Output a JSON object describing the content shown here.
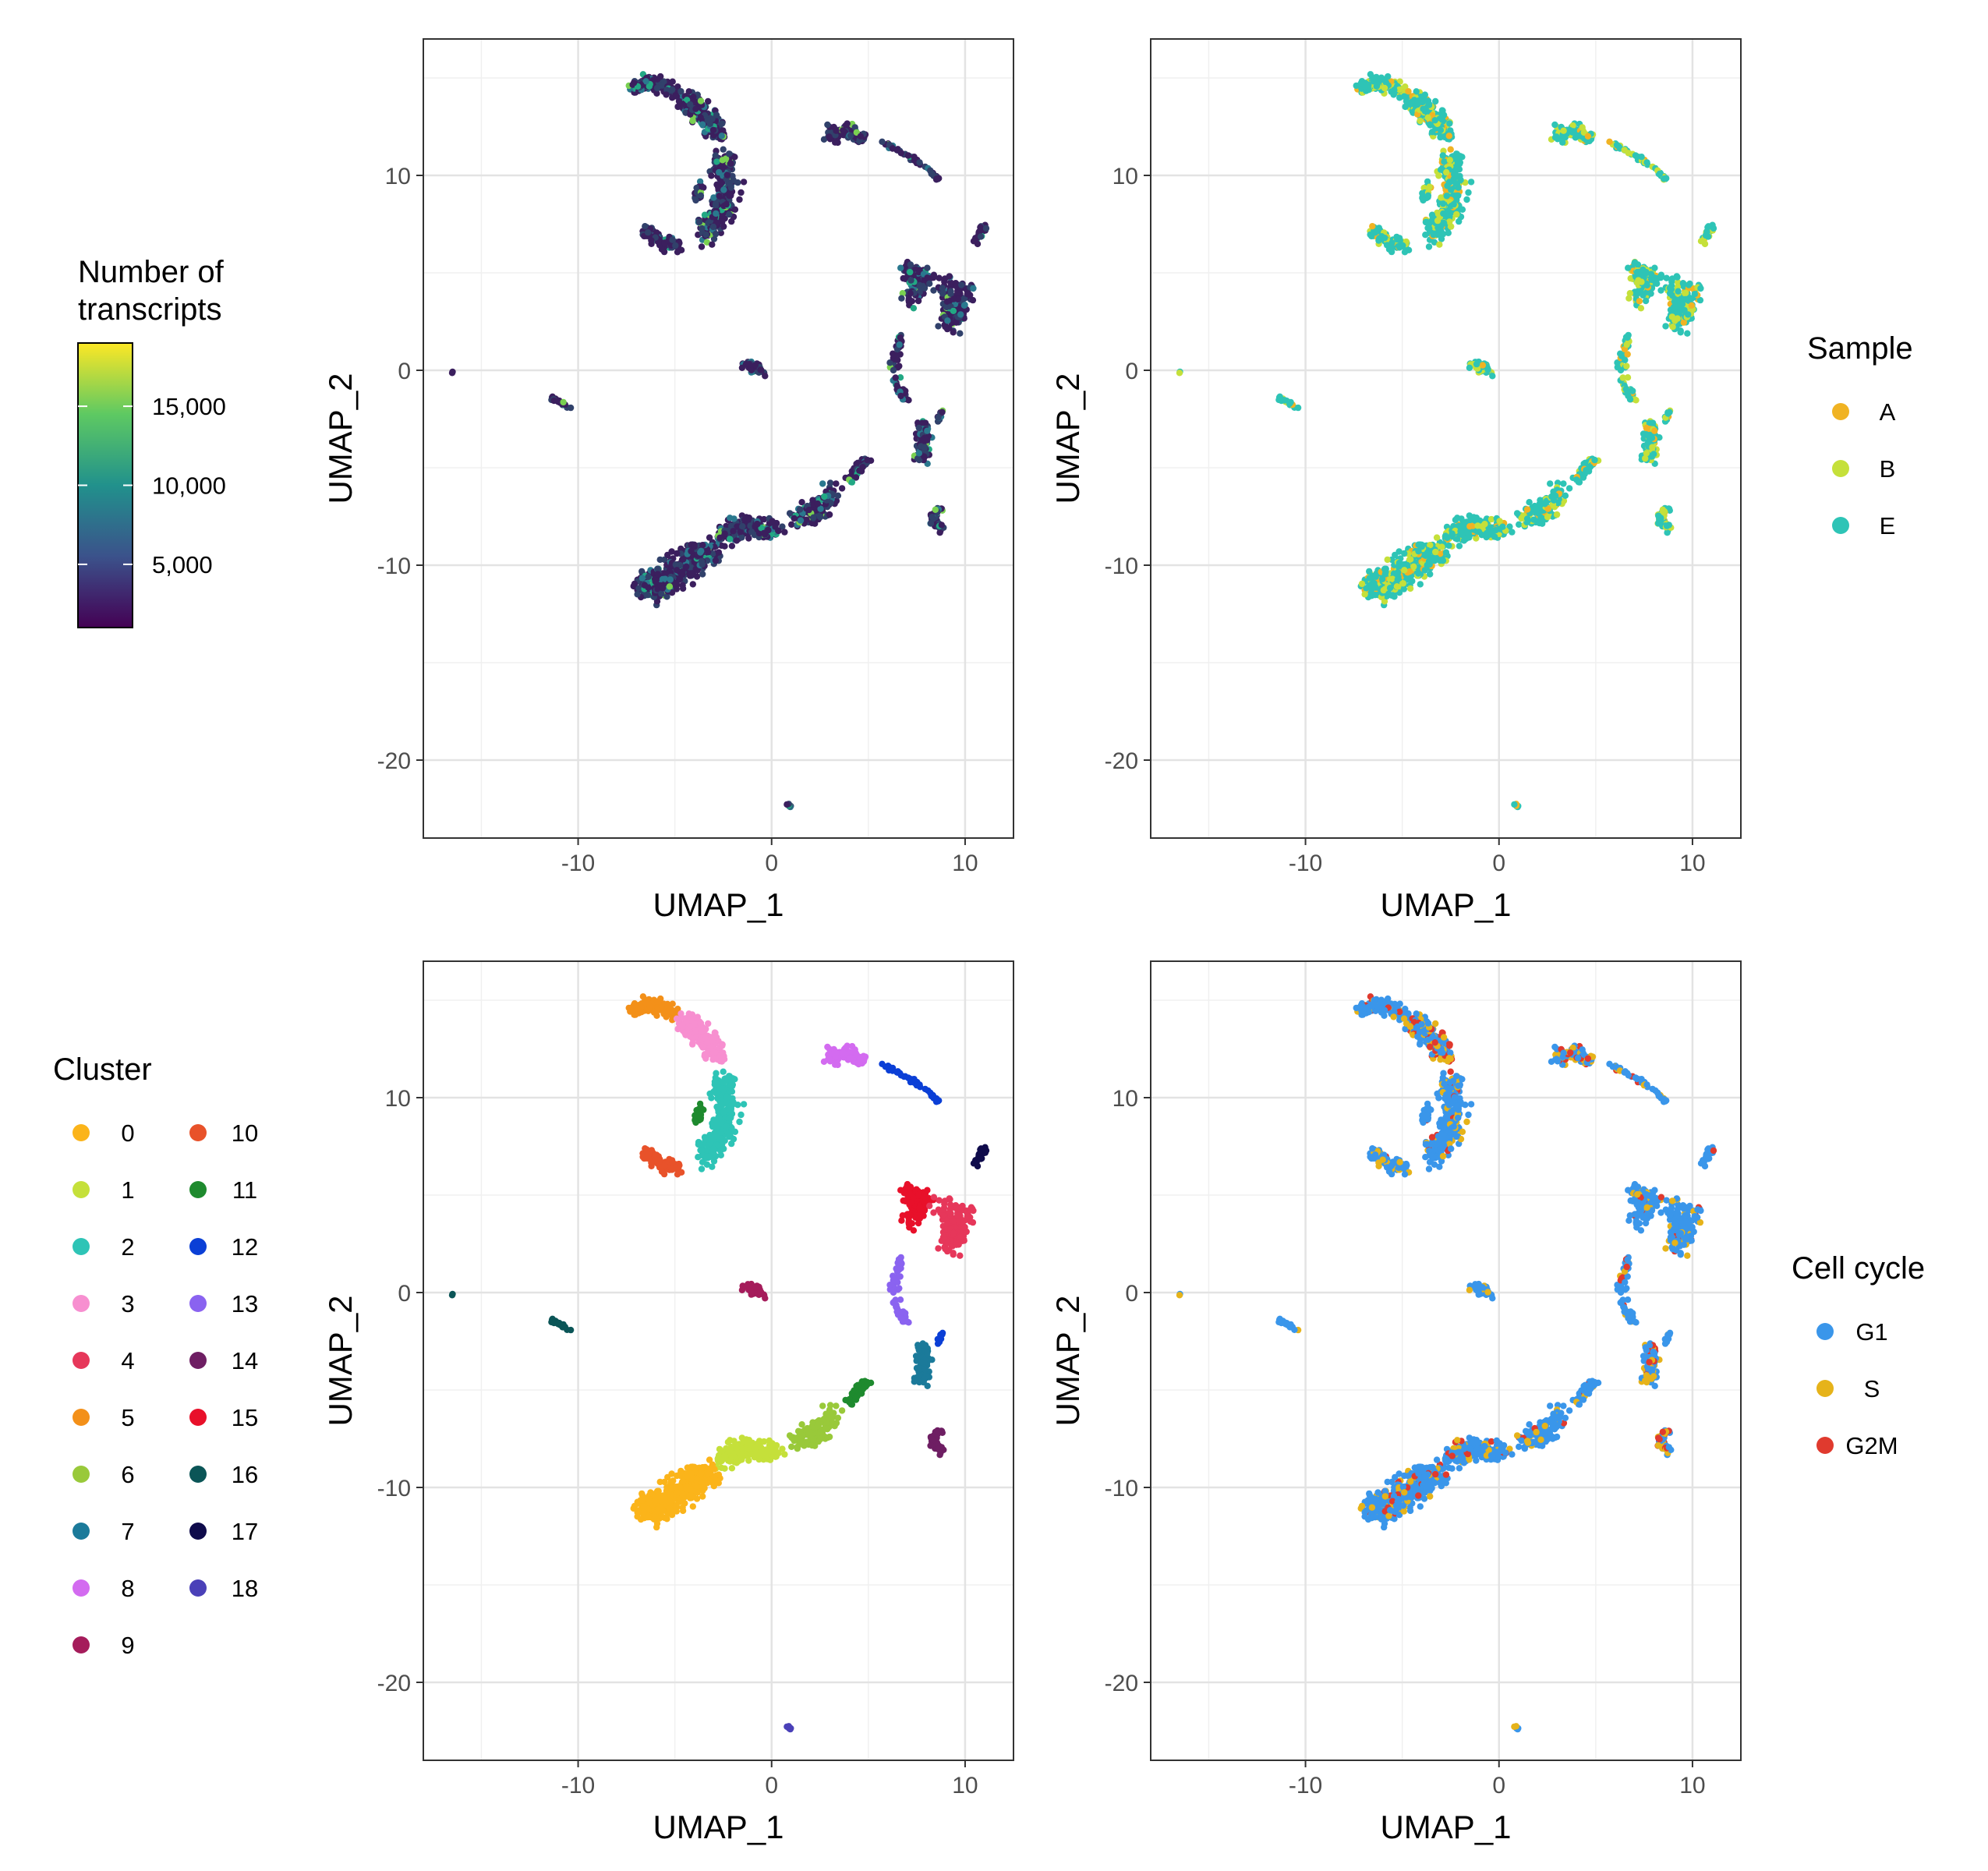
{
  "chart_data": [
    {
      "type": "scatter",
      "xlabel": "UMAP_1",
      "ylabel": "UMAP_2",
      "xlim": [
        -18,
        12.5
      ],
      "ylim": [
        -24,
        17
      ],
      "xticks": [
        -10,
        0,
        10
      ],
      "yticks": [
        -20,
        -10,
        0,
        10
      ],
      "xtick_labels": [
        "-10",
        "0",
        "10"
      ],
      "ytick_labels": [
        "-20",
        "-10",
        "0",
        "10"
      ],
      "grid": true,
      "color_by": "Number of transcripts",
      "legend": {
        "kind": "colorbar",
        "title_lines": [
          "Number of",
          "transcripts"
        ],
        "range": [
          1000,
          19000
        ],
        "tick_values": [
          5000,
          10000,
          15000
        ],
        "tick_labels": [
          "5,000",
          "10,000",
          "15,000"
        ],
        "colors": [
          "#440154",
          "#3b528b",
          "#21918c",
          "#5ec962",
          "#fde725"
        ],
        "position": "left"
      },
      "dominant_color": "#3b1f5e"
    },
    {
      "type": "scatter",
      "xlabel": "UMAP_1",
      "ylabel": "UMAP_2",
      "xlim": [
        -18,
        12.5
      ],
      "ylim": [
        -24,
        17
      ],
      "xticks": [
        -10,
        0,
        10
      ],
      "yticks": [
        -20,
        -10,
        0,
        10
      ],
      "xtick_labels": [
        "-10",
        "0",
        "10"
      ],
      "ytick_labels": [
        "-20",
        "-10",
        "0",
        "10"
      ],
      "grid": true,
      "color_by": "Sample",
      "legend": {
        "kind": "categorical",
        "title": "Sample",
        "position": "right",
        "columns": 1,
        "entries": [
          {
            "label": "A",
            "color": "#f0b323"
          },
          {
            "label": "B",
            "color": "#c5e03a"
          },
          {
            "label": "E",
            "color": "#2ec4b6"
          }
        ]
      },
      "dominant_color": "#2ec4b6"
    },
    {
      "type": "scatter",
      "xlabel": "UMAP_1",
      "ylabel": "UMAP_2",
      "xlim": [
        -18,
        12.5
      ],
      "ylim": [
        -24,
        17
      ],
      "xticks": [
        -10,
        0,
        10
      ],
      "yticks": [
        -20,
        -10,
        0,
        10
      ],
      "xtick_labels": [
        "-10",
        "0",
        "10"
      ],
      "ytick_labels": [
        "-20",
        "-10",
        "0",
        "10"
      ],
      "grid": true,
      "color_by": "Cluster",
      "legend": {
        "kind": "categorical",
        "title": "Cluster",
        "position": "left",
        "columns": 2,
        "entries": [
          {
            "label": "0",
            "color": "#fbb41a"
          },
          {
            "label": "1",
            "color": "#c5e03a"
          },
          {
            "label": "2",
            "color": "#2ec4b6"
          },
          {
            "label": "3",
            "color": "#f78fd0"
          },
          {
            "label": "4",
            "color": "#e6375a"
          },
          {
            "label": "5",
            "color": "#f39019"
          },
          {
            "label": "6",
            "color": "#99c93a"
          },
          {
            "label": "7",
            "color": "#1b7a9a"
          },
          {
            "label": "8",
            "color": "#d36bf0"
          },
          {
            "label": "9",
            "color": "#a51c5b"
          },
          {
            "label": "10",
            "color": "#e8522a"
          },
          {
            "label": "11",
            "color": "#1e8a2e"
          },
          {
            "label": "12",
            "color": "#0b3fd6"
          },
          {
            "label": "13",
            "color": "#8a63f0"
          },
          {
            "label": "14",
            "color": "#6e1e63"
          },
          {
            "label": "15",
            "color": "#e8102a"
          },
          {
            "label": "16",
            "color": "#0b5557"
          },
          {
            "label": "17",
            "color": "#0f0b4b"
          },
          {
            "label": "18",
            "color": "#4a40b8"
          }
        ]
      }
    },
    {
      "type": "scatter",
      "xlabel": "UMAP_1",
      "ylabel": "UMAP_2",
      "xlim": [
        -18,
        12.5
      ],
      "ylim": [
        -24,
        17
      ],
      "xticks": [
        -10,
        0,
        10
      ],
      "yticks": [
        -20,
        -10,
        0,
        10
      ],
      "xtick_labels": [
        "-10",
        "0",
        "10"
      ],
      "ytick_labels": [
        "-20",
        "-10",
        "0",
        "10"
      ],
      "grid": true,
      "color_by": "Cell cycle",
      "legend": {
        "kind": "categorical",
        "title": "Cell cycle",
        "position": "right",
        "columns": 1,
        "entries": [
          {
            "label": "G1",
            "color": "#3a96ea"
          },
          {
            "label": "S",
            "color": "#e6b31a"
          },
          {
            "label": "G2M",
            "color": "#e03a2e"
          }
        ]
      },
      "dominant_color": "#3a96ea"
    }
  ]
}
